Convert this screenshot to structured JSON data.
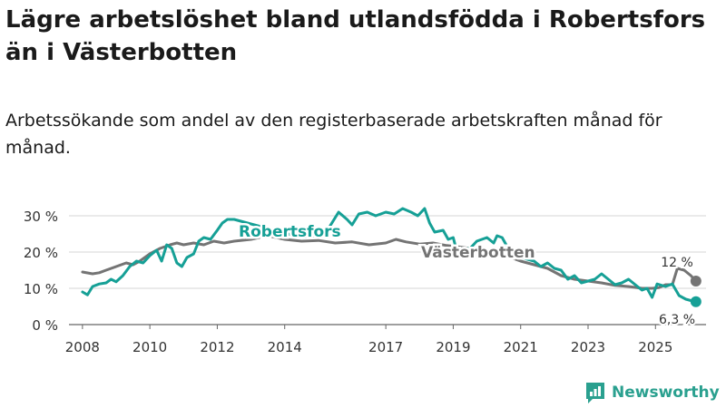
{
  "title": "Lägre arbetslöshet bland utlandsfödda i Robertsfors än i Västerbotten",
  "subtitle": "Arbetssökande som andel av den registerbaserade arbetskraften månad för månad.",
  "logo_text": "Newsworthy",
  "colors": {
    "robertsfors": "#16a096",
    "vasterbotten": "#747474",
    "grid": "#d4d4d4",
    "axis": "#666666",
    "text": "#333333"
  },
  "chart_data": {
    "type": "line",
    "title": "Lägre arbetslöshet bland utlandsfödda i Robertsfors än i Västerbotten",
    "ylim": [
      0,
      30
    ],
    "xlim": [
      2007.6,
      2026.5
    ],
    "y_ticks": [
      0,
      10,
      20,
      30
    ],
    "y_tick_labels": [
      "0 %",
      "10 %",
      "20 %",
      "30 %"
    ],
    "x_ticks": [
      2008,
      2010,
      2012,
      2014,
      2017,
      2019,
      2021,
      2023,
      2025
    ],
    "x_tick_labels": [
      "2008",
      "2010",
      "2012",
      "2014",
      "2017",
      "2019",
      "2021",
      "2023",
      "2025"
    ],
    "grid": true,
    "series": [
      {
        "name": "Robertsfors",
        "label": "Robertsfors",
        "end_label": "6,3 %",
        "points": [
          [
            2008.0,
            9
          ],
          [
            2008.15,
            8.2
          ],
          [
            2008.3,
            10.5
          ],
          [
            2008.5,
            11.2
          ],
          [
            2008.7,
            11.5
          ],
          [
            2008.85,
            12.5
          ],
          [
            2009.0,
            11.8
          ],
          [
            2009.2,
            13.5
          ],
          [
            2009.4,
            16
          ],
          [
            2009.6,
            17.5
          ],
          [
            2009.8,
            17
          ],
          [
            2010.0,
            19
          ],
          [
            2010.2,
            20.5
          ],
          [
            2010.35,
            17.5
          ],
          [
            2010.5,
            22
          ],
          [
            2010.65,
            21
          ],
          [
            2010.8,
            17
          ],
          [
            2010.95,
            16
          ],
          [
            2011.1,
            18.5
          ],
          [
            2011.3,
            19.5
          ],
          [
            2011.45,
            23
          ],
          [
            2011.6,
            24
          ],
          [
            2011.8,
            23.5
          ],
          [
            2012.0,
            26
          ],
          [
            2012.15,
            28
          ],
          [
            2012.3,
            29
          ],
          [
            2012.5,
            29
          ],
          [
            2014.5,
            24
          ],
          [
            2014.9,
            24.5
          ],
          [
            2015.2,
            25
          ],
          [
            2015.4,
            28
          ],
          [
            2015.6,
            31
          ],
          [
            2015.85,
            29
          ],
          [
            2016.0,
            27.5
          ],
          [
            2016.2,
            30.5
          ],
          [
            2016.45,
            31
          ],
          [
            2016.7,
            30
          ],
          [
            2017.0,
            31
          ],
          [
            2017.25,
            30.5
          ],
          [
            2017.5,
            32
          ],
          [
            2017.75,
            31
          ],
          [
            2017.95,
            30
          ],
          [
            2018.15,
            32
          ],
          [
            2018.3,
            28
          ],
          [
            2018.45,
            25.5
          ],
          [
            2018.7,
            26
          ],
          [
            2018.85,
            23.5
          ],
          [
            2019.0,
            24
          ],
          [
            2019.1,
            20.5
          ],
          [
            2019.25,
            21
          ],
          [
            2019.5,
            21
          ],
          [
            2019.7,
            23
          ],
          [
            2019.85,
            23.5
          ],
          [
            2020.0,
            24
          ],
          [
            2020.2,
            22.5
          ],
          [
            2020.3,
            24.5
          ],
          [
            2020.45,
            24
          ],
          [
            2020.6,
            21.5
          ],
          [
            2021.0,
            18.5
          ],
          [
            2021.4,
            17.5
          ],
          [
            2021.6,
            16
          ],
          [
            2021.8,
            17
          ],
          [
            2022.0,
            15.5
          ],
          [
            2022.2,
            15
          ],
          [
            2022.4,
            12.5
          ],
          [
            2022.6,
            13.5
          ],
          [
            2022.8,
            11.5
          ],
          [
            2023.0,
            12
          ],
          [
            2023.2,
            12.5
          ],
          [
            2023.4,
            14
          ],
          [
            2023.6,
            12.5
          ],
          [
            2023.8,
            11
          ],
          [
            2024.0,
            11.5
          ],
          [
            2024.2,
            12.5
          ],
          [
            2024.4,
            11
          ],
          [
            2024.6,
            9.5
          ],
          [
            2024.75,
            10
          ],
          [
            2024.9,
            7.5
          ],
          [
            2025.05,
            11.2
          ],
          [
            2025.3,
            10.5
          ],
          [
            2025.5,
            11.2
          ],
          [
            2025.7,
            8
          ],
          [
            2025.9,
            7
          ],
          [
            2026.1,
            6.5
          ],
          [
            2026.2,
            6.3
          ]
        ]
      },
      {
        "name": "Västerbotten",
        "label": "Västerbotten",
        "end_label": "12 %",
        "points": [
          [
            2008.0,
            14.5
          ],
          [
            2008.3,
            14
          ],
          [
            2008.5,
            14.3
          ],
          [
            2008.7,
            15
          ],
          [
            2009.0,
            16
          ],
          [
            2009.3,
            17
          ],
          [
            2009.5,
            16.5
          ],
          [
            2009.7,
            17.5
          ],
          [
            2010.0,
            19.5
          ],
          [
            2010.3,
            21
          ],
          [
            2010.6,
            22
          ],
          [
            2010.8,
            22.5
          ],
          [
            2011.0,
            22
          ],
          [
            2011.3,
            22.5
          ],
          [
            2011.6,
            22
          ],
          [
            2011.9,
            23
          ],
          [
            2012.2,
            22.5
          ],
          [
            2012.5,
            23
          ],
          [
            2013.0,
            23.5
          ],
          [
            2013.5,
            24.5
          ],
          [
            2014.0,
            23.5
          ],
          [
            2014.5,
            23
          ],
          [
            2015.0,
            23.2
          ],
          [
            2015.5,
            22.5
          ],
          [
            2016.0,
            22.8
          ],
          [
            2016.5,
            22
          ],
          [
            2017.0,
            22.5
          ],
          [
            2017.3,
            23.5
          ],
          [
            2017.6,
            22.8
          ],
          [
            2018.0,
            22.2
          ],
          [
            2018.4,
            22.5
          ],
          [
            2018.8,
            21.8
          ],
          [
            2019.1,
            21.5
          ],
          [
            2019.5,
            21
          ],
          [
            2019.9,
            20.5
          ],
          [
            2020.3,
            20
          ],
          [
            2020.7,
            18.5
          ],
          [
            2021.0,
            17.5
          ],
          [
            2021.4,
            16.5
          ],
          [
            2021.8,
            15.5
          ],
          [
            2022.2,
            13.5
          ],
          [
            2022.6,
            12.5
          ],
          [
            2023.0,
            12
          ],
          [
            2023.4,
            11.5
          ],
          [
            2023.8,
            10.8
          ],
          [
            2024.2,
            10.5
          ],
          [
            2024.6,
            10
          ],
          [
            2024.9,
            10
          ],
          [
            2025.1,
            10.2
          ],
          [
            2025.3,
            11
          ],
          [
            2025.5,
            11
          ],
          [
            2025.65,
            15.5
          ],
          [
            2025.85,
            15
          ],
          [
            2026.05,
            13.5
          ],
          [
            2026.2,
            12
          ]
        ]
      }
    ]
  }
}
